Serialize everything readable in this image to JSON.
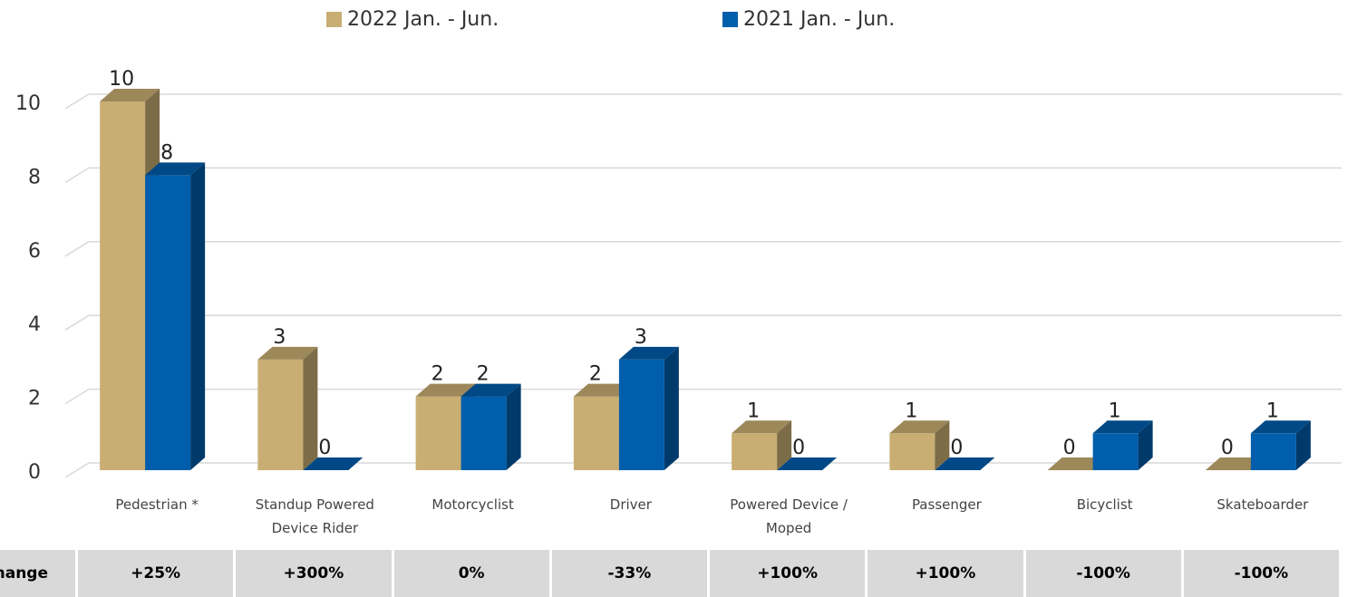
{
  "chart_data": {
    "type": "bar",
    "categories": [
      "Pedestrian *",
      "Standup Powered Device Rider",
      "Motorcyclist",
      "Driver",
      "Powered Device / Moped",
      "Passenger",
      "Bicyclist",
      "Skateboarder"
    ],
    "series": [
      {
        "name": "2022 Jan. - Jun.",
        "color": "#c9ae74",
        "values": [
          10,
          3,
          2,
          2,
          1,
          1,
          0,
          0
        ]
      },
      {
        "name": "2021 Jan. - Jun.",
        "color": "#005eac",
        "values": [
          8,
          0,
          2,
          3,
          0,
          0,
          1,
          1
        ]
      }
    ],
    "ylim": [
      0,
      10
    ],
    "yticks": [
      0,
      2,
      4,
      6,
      8,
      10
    ],
    "grid": true,
    "legend": "top"
  },
  "table": {
    "label": "Change",
    "cells": [
      "+25%",
      "+300%",
      "0%",
      "-33%",
      "+100%",
      "+100%",
      "-100%",
      "-100%"
    ]
  }
}
